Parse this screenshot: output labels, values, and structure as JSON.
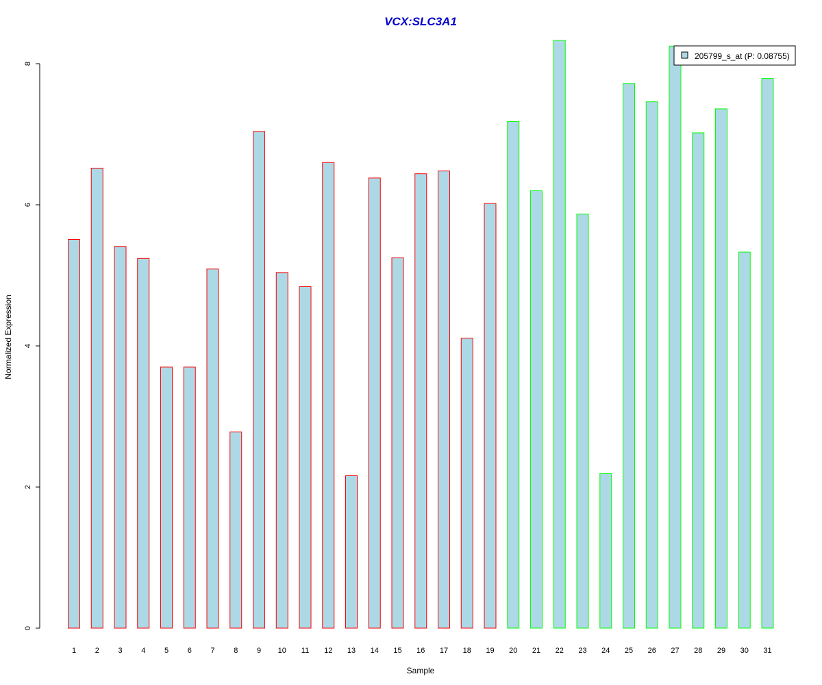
{
  "colors": {
    "bar_fill": "#add8e6",
    "group1_border": "#ff0000",
    "group2_border": "#00ff00",
    "title": "#0000cd"
  },
  "chart_data": {
    "type": "bar",
    "title": "VCX:SLC3A1",
    "xlabel": "Sample",
    "ylabel": "Normalized Expression",
    "ylim": [
      0,
      8.33
    ],
    "yticks": [
      0,
      2,
      4,
      6,
      8
    ],
    "categories": [
      "1",
      "2",
      "3",
      "4",
      "5",
      "6",
      "7",
      "8",
      "9",
      "10",
      "11",
      "12",
      "13",
      "14",
      "15",
      "16",
      "17",
      "18",
      "19",
      "20",
      "21",
      "22",
      "23",
      "24",
      "25",
      "26",
      "27",
      "28",
      "29",
      "30",
      "31"
    ],
    "values": [
      5.51,
      6.52,
      5.41,
      5.24,
      3.7,
      3.7,
      5.09,
      2.78,
      7.04,
      5.04,
      4.84,
      6.6,
      2.16,
      6.38,
      5.25,
      6.44,
      6.48,
      4.11,
      6.02,
      7.18,
      6.2,
      8.33,
      5.87,
      2.19,
      7.72,
      7.46,
      8.25,
      7.02,
      7.36,
      5.33,
      7.79
    ],
    "groups": [
      1,
      1,
      1,
      1,
      1,
      1,
      1,
      1,
      1,
      1,
      1,
      1,
      1,
      1,
      1,
      1,
      1,
      1,
      1,
      2,
      2,
      2,
      2,
      2,
      2,
      2,
      2,
      2,
      2,
      2,
      2
    ],
    "legend": {
      "label": "205799_s_at (P: 0.08755)",
      "position": "top-right"
    },
    "grid": false
  }
}
